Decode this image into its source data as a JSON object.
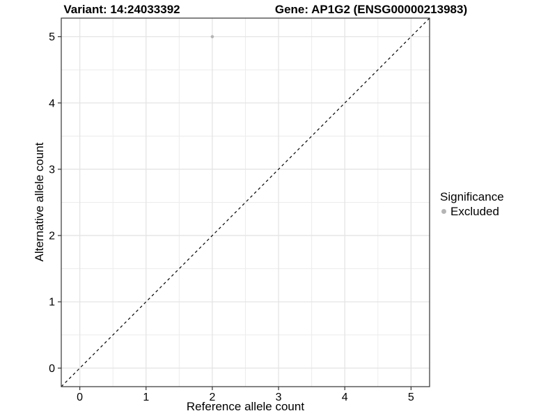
{
  "chart_data": {
    "type": "scatter",
    "title_left": "Variant: 14:24033392",
    "title_right": "Gene: AP1G2 (ENSG00000213983)",
    "xlabel": "Reference allele count",
    "ylabel": "Alternative allele count",
    "xlim": [
      -0.28,
      5.28
    ],
    "ylim": [
      -0.28,
      5.28
    ],
    "x_ticks": [
      0,
      1,
      2,
      3,
      4,
      5
    ],
    "y_ticks": [
      0,
      1,
      2,
      3,
      4,
      5
    ],
    "minor_ticks": [
      0.5,
      1.5,
      2.5,
      3.5,
      4.5
    ],
    "grid": true,
    "series": [
      {
        "name": "Excluded",
        "points": [
          {
            "x": 2,
            "y": 5
          }
        ],
        "color": "#b5b5b5",
        "point_radius": 2.3
      }
    ],
    "reference_line": {
      "slope": 1,
      "intercept": 0,
      "style": "dashed",
      "color": "#000000"
    },
    "legend": {
      "title": "Significance",
      "position": "right",
      "items": [
        {
          "label": "Excluded",
          "color": "#b5b5b5"
        }
      ]
    },
    "panel": {
      "background": "#ffffff",
      "border_color": "#333333",
      "tick_color": "#333333",
      "grid_major_color": "#e4e4e4",
      "grid_minor_color": "#ececec"
    }
  }
}
